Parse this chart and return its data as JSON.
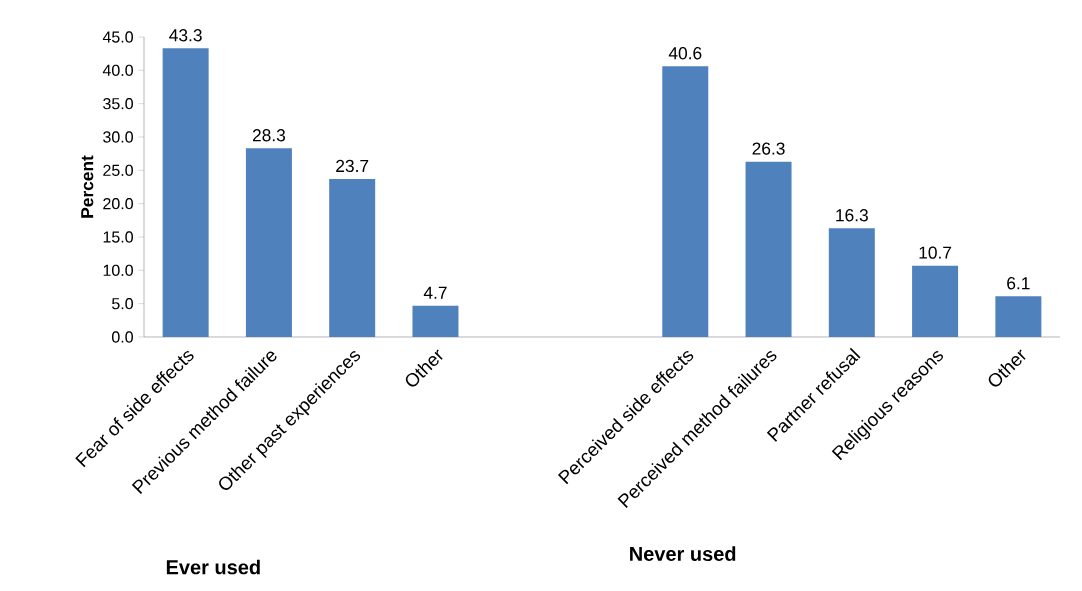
{
  "chart_data": {
    "type": "bar",
    "ylabel": "Percent",
    "categories": [
      "Fear of side effects",
      "Previous method failure",
      "Other past experiences",
      "Other",
      null,
      null,
      "Perceived side effects",
      "Perceived method failures",
      "Partner refusal",
      "Religious reasons",
      "Other"
    ],
    "values": [
      43.3,
      28.3,
      23.7,
      4.7,
      null,
      null,
      40.6,
      26.3,
      16.3,
      10.7,
      6.1
    ],
    "color": "#4f81bd",
    "ylim": [
      0,
      45
    ],
    "yticks": [
      {
        "value": 0,
        "label": "0.0"
      },
      {
        "value": 5,
        "label": "5.0"
      },
      {
        "value": 10,
        "label": "10.0"
      },
      {
        "value": 15,
        "label": "15.0"
      },
      {
        "value": 20,
        "label": "20.0"
      },
      {
        "value": 25,
        "label": "25.0"
      },
      {
        "value": 30,
        "label": "30.0"
      },
      {
        "value": 35,
        "label": "35.0"
      },
      {
        "value": 40,
        "label": "40.0"
      },
      {
        "value": 45,
        "label": "45.0"
      }
    ],
    "data_labels": true,
    "annotations": [
      "Ever used",
      "Never used"
    ]
  }
}
